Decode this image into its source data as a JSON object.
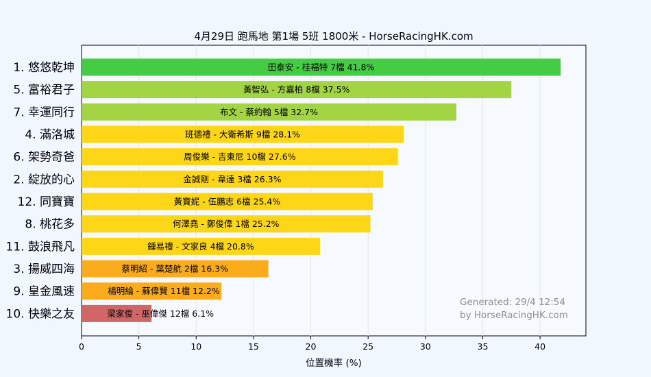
{
  "chart_data": {
    "type": "bar",
    "orientation": "horizontal",
    "title": "4月29日  跑馬地  第1場  5班  1800米 - HorseRacingHK.com",
    "xlabel": "位置機率 (%)",
    "ylabel": "",
    "xlim": [
      0,
      44
    ],
    "xticks": [
      0,
      5,
      10,
      15,
      20,
      25,
      30,
      35,
      40
    ],
    "grid": "vertical",
    "categories": [
      "1. 悠悠乾坤",
      "5. 富裕君子",
      "7. 幸運同行",
      "4. 滿洛城",
      "6. 架勢奇爸",
      "2. 綻放的心",
      "12. 同寶寶",
      "8. 桃花多",
      "11. 鼓浪飛凡",
      "3. 揚威四海",
      "9. 皇金風速",
      "10. 快樂之友"
    ],
    "values": [
      41.8,
      37.5,
      32.7,
      28.1,
      27.6,
      26.3,
      25.4,
      25.2,
      20.8,
      16.3,
      12.2,
      6.1
    ],
    "bar_labels": [
      "田泰安 - 桂福特 7檔  41.8%",
      "黃智弘 - 方嘉柏 8檔  37.5%",
      "布文 - 蔡約翰 5檔  32.7%",
      "班德禮 - 大衛希斯 9檔  28.1%",
      "周俊樂 - 吉東尼 10檔  27.6%",
      "金誠剛 - 韋達 3檔  26.3%",
      "黃寶妮 - 伍鵬志 6檔  25.4%",
      "何澤堯 - 鄭俊偉 1檔  25.2%",
      "鍾易禮 - 文家良 4檔  20.8%",
      "蔡明紹 - 葉楚航 2檔  16.3%",
      "楊明綸 - 蘇偉賢 11檔  12.2%",
      "梁家俊 - 巫偉傑 12檔  6.1%"
    ],
    "colors": [
      "#44cc44",
      "#a2d443",
      "#a2d443",
      "#fdd617",
      "#fdd617",
      "#fdd617",
      "#fdd617",
      "#fdd617",
      "#fdd617",
      "#fbac1c",
      "#fbac1c",
      "#d16666"
    ],
    "watermark": [
      "Generated: 29/4 12:54",
      "by HorseRacingHK.com"
    ]
  }
}
